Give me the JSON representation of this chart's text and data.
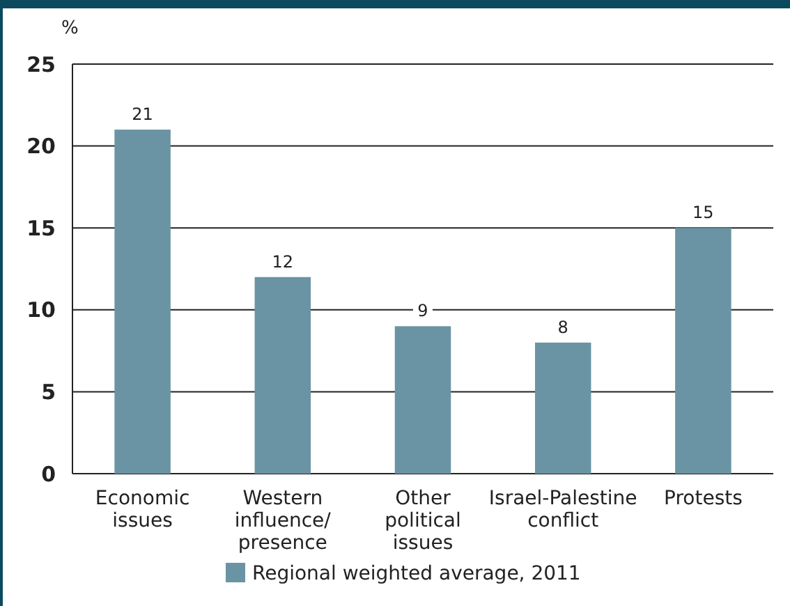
{
  "chart_data": {
    "type": "bar",
    "ylabel": "%",
    "categories": [
      "Economic issues",
      "Western influence/presence",
      "Other political issues",
      "Israel-Palestine conflict",
      "Protests"
    ],
    "series": [
      {
        "name": "Regional weighted average, 2011",
        "color": "#6a94a3",
        "values": [
          21,
          12,
          9,
          8,
          15
        ]
      }
    ],
    "ylim": [
      0,
      25
    ],
    "yticks": [
      0,
      5,
      10,
      15,
      20,
      25
    ],
    "grid": "y",
    "legend": "bottom",
    "data_labels": true
  }
}
